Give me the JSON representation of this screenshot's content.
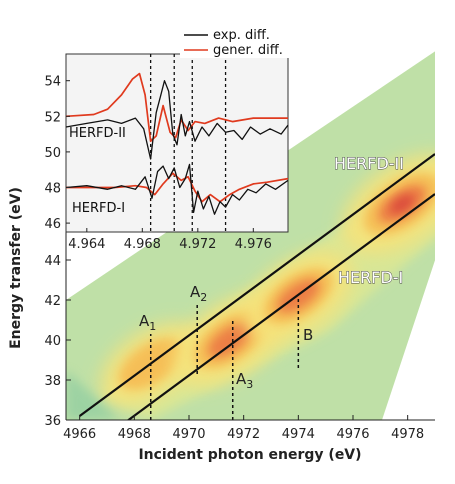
{
  "chart_data": [
    {
      "type": "heatmap",
      "title": "",
      "xlabel": "Incident photon energy (eV)",
      "ylabel": "Energy transfer (eV)",
      "xlim": [
        4965.5,
        4979
      ],
      "ylim": [
        36,
        57
      ],
      "x_ticks": [
        "4966",
        "4968",
        "4970",
        "4972",
        "4974",
        "4976",
        "4978"
      ],
      "y_ticks": [
        "36",
        "38",
        "40",
        "42",
        "44"
      ],
      "colorscale": [
        "#a9d89a",
        "#d6e48e",
        "#f6e27a",
        "#f6bd55",
        "#ec7c44",
        "#d9443b"
      ],
      "hotspots": [
        {
          "x": 4968.6,
          "y": 38.8,
          "intensity": 0.55
        },
        {
          "x": 4971.5,
          "y": 40.0,
          "intensity": 0.75
        },
        {
          "x": 4974.0,
          "y": 42.2,
          "intensity": 0.7
        },
        {
          "x": 4977.8,
          "y": 46.8,
          "intensity": 0.9
        }
      ],
      "diagonal_lines": [
        {
          "name": "HERFD-II",
          "x": [
            4966,
            4979
          ],
          "y": [
            36.2,
            49.3
          ]
        },
        {
          "name": "HERFD-I",
          "x": [
            4966,
            4979
          ],
          "y": [
            34.2,
            47.3
          ]
        }
      ],
      "markers": [
        {
          "name": "A₁",
          "x": 4968.6,
          "y_range": [
            36.0,
            40.3
          ]
        },
        {
          "name": "A₂",
          "x": 4970.3,
          "y_range": [
            38.3,
            41.9
          ]
        },
        {
          "name": "A₃",
          "x": 4971.6,
          "y_range": [
            36.0,
            41.1
          ]
        },
        {
          "name": "B",
          "x": 4974.0,
          "y_range": [
            38.6,
            42.1
          ]
        }
      ],
      "labels": {
        "herfd_ii": "HERFD-II",
        "herfd_i": "HERFD-I",
        "a1_main": "A",
        "a1_sub": "1",
        "a2_main": "A",
        "a2_sub": "2",
        "a3_main": "A",
        "a3_sub": "3",
        "b": "B"
      }
    },
    {
      "type": "line",
      "title": "",
      "xlim": [
        4962.5,
        4978.5
      ],
      "ylim": [
        45.5,
        55.5
      ],
      "x_ticks": [
        "4.964",
        "4.968",
        "4.972",
        "4.976"
      ],
      "y_ticks": [
        "46",
        "48",
        "50",
        "52",
        "54"
      ],
      "legend": {
        "position": "top",
        "entries": [
          "exp. diff.",
          "gener. diff."
        ]
      },
      "colors": {
        "exp": "#111111",
        "gener": "#e03a1e"
      },
      "curve_labels": {
        "upper": "HERFD-II",
        "lower": "HERFD-I"
      },
      "markers_x": [
        4968.6,
        4970.3,
        4971.6,
        4974.0
      ],
      "series": [
        {
          "name": "gener. diff.",
          "label": "HERFD-II",
          "x": [
            4962.5,
            4964.5,
            4965.5,
            4966.5,
            4967.3,
            4967.8,
            4968.2,
            4968.6,
            4969.0,
            4969.5,
            4970.0,
            4970.4,
            4970.8,
            4971.3,
            4971.8,
            4972.5,
            4973.5,
            4974.5,
            4976.0,
            4978.5
          ],
          "y": [
            52.0,
            52.1,
            52.4,
            53.2,
            54.1,
            54.4,
            53.2,
            50.6,
            50.9,
            52.6,
            51.1,
            50.8,
            51.8,
            51.2,
            51.7,
            51.6,
            51.9,
            51.7,
            51.9,
            51.9
          ]
        },
        {
          "name": "exp. diff.",
          "label": "HERFD-II",
          "x": [
            4962.5,
            4964.0,
            4965.5,
            4966.5,
            4967.5,
            4968.1,
            4968.6,
            4969.0,
            4969.3,
            4969.6,
            4969.9,
            4970.2,
            4970.5,
            4970.8,
            4971.1,
            4971.4,
            4971.8,
            4972.3,
            4972.8,
            4973.4,
            4974.0,
            4974.6,
            4975.2,
            4975.8,
            4976.5,
            4977.2,
            4978.0,
            4978.5
          ],
          "y": [
            51.4,
            51.6,
            51.8,
            51.6,
            51.9,
            51.3,
            49.6,
            52.2,
            53.1,
            54.0,
            53.4,
            51.0,
            50.4,
            52.1,
            50.9,
            51.7,
            50.6,
            51.4,
            50.9,
            51.6,
            51.1,
            51.2,
            50.7,
            51.4,
            51.0,
            51.3,
            51.0,
            51.5
          ]
        },
        {
          "name": "gener. diff.",
          "label": "HERFD-I",
          "x": [
            4962.5,
            4964.5,
            4966.0,
            4967.5,
            4968.3,
            4968.9,
            4969.5,
            4970.2,
            4970.8,
            4971.3,
            4971.8,
            4972.3,
            4972.9,
            4973.6,
            4974.3,
            4975.0,
            4976.0,
            4977.0,
            4978.5
          ],
          "y": [
            48.0,
            48.0,
            48.0,
            48.1,
            48.0,
            47.6,
            48.2,
            48.8,
            48.4,
            48.6,
            47.8,
            47.2,
            47.6,
            47.2,
            47.6,
            47.9,
            48.2,
            48.3,
            48.5
          ]
        },
        {
          "name": "exp. diff.",
          "label": "HERFD-I",
          "x": [
            4962.5,
            4964.0,
            4965.5,
            4966.5,
            4967.5,
            4968.2,
            4968.7,
            4969.1,
            4969.5,
            4969.9,
            4970.3,
            4970.7,
            4971.1,
            4971.4,
            4971.7,
            4972.0,
            4972.4,
            4972.8,
            4973.2,
            4973.6,
            4974.0,
            4974.5,
            4975.0,
            4975.6,
            4976.2,
            4976.9,
            4977.6,
            4978.5
          ],
          "y": [
            48.0,
            48.1,
            47.9,
            48.1,
            47.9,
            48.6,
            47.4,
            48.9,
            49.2,
            48.5,
            49.1,
            48.0,
            48.5,
            49.3,
            46.6,
            47.8,
            46.8,
            47.5,
            46.5,
            47.2,
            46.9,
            47.6,
            47.3,
            47.9,
            47.7,
            48.2,
            47.9,
            48.4
          ]
        }
      ]
    }
  ]
}
